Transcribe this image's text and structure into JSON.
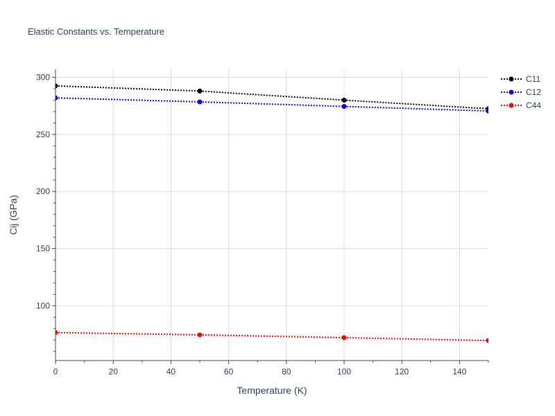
{
  "chart_data": {
    "type": "line",
    "title": "Elastic Constants vs. Temperature",
    "xlabel": "Temperature (K)",
    "ylabel": "Cij (GPa)",
    "xlim": [
      0,
      150
    ],
    "ylim": [
      52,
      307
    ],
    "xticks": [
      0,
      20,
      40,
      60,
      80,
      100,
      120,
      140
    ],
    "yticks": [
      100,
      150,
      200,
      250,
      300
    ],
    "grid": true,
    "legend_position": "top-right",
    "series": [
      {
        "name": "C11",
        "color": "#000000",
        "x": [
          0,
          50,
          100,
          150
        ],
        "y": [
          292.5,
          288,
          280,
          272.5
        ]
      },
      {
        "name": "C12",
        "color": "#0000ff",
        "x": [
          0,
          50,
          100,
          150
        ],
        "y": [
          282,
          278.5,
          274.5,
          270.5
        ]
      },
      {
        "name": "C44",
        "color": "#ff0000",
        "x": [
          0,
          50,
          100,
          150
        ],
        "y": [
          76.5,
          74.5,
          72,
          69.5
        ]
      }
    ]
  }
}
